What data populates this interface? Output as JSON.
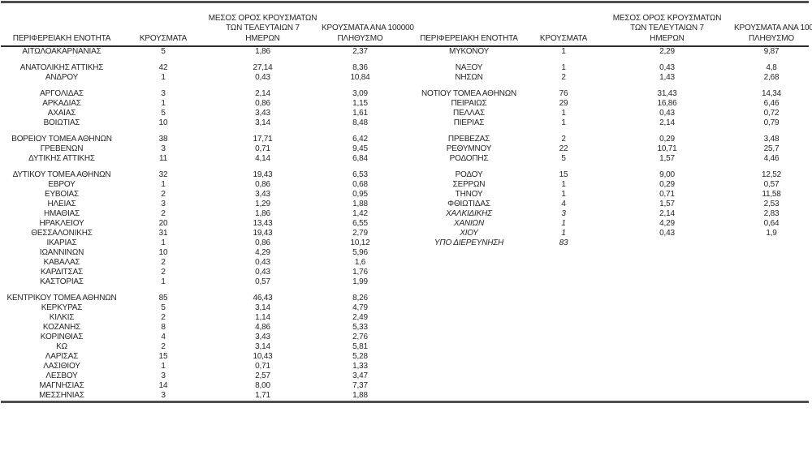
{
  "colors": {
    "background": "#ffffff",
    "text": "#262626",
    "thick_border": "#4f4f4f",
    "header_underline": "#2e2e2e"
  },
  "table": {
    "headers": {
      "region": "ΠΕΡΙΦΕΡΕΙΑΚΗ ΕΝΟΤΗΤΑ",
      "cases": "ΚΡΟΥΣΜΑΤΑ",
      "avg7": [
        "ΜΕΣΟΣ ΟΡΟΣ ΚΡΟΥΣΜΑΤΩΝ",
        "ΤΩΝ ΤΕΛΕΥΤΑΙΩΝ 7",
        "ΗΜΕΡΩΝ"
      ],
      "per100k": [
        "ΚΡΟΥΣΜΑΤΑ ΑΝΑ 100000",
        "ΠΛΗΘΥΣΜΟ"
      ]
    },
    "rows": [
      {
        "left": {
          "region": "ΑΙΤΩΛΟΑΚΑΡΝΑΝΙΑΣ",
          "cases": "5",
          "avg7": "1,86",
          "per100k": "2,37"
        },
        "right": {
          "region": "ΜΥΚΟΝΟΥ",
          "cases": "1",
          "avg7": "2,29",
          "per100k": "9,87"
        }
      },
      {
        "spacer": true
      },
      {
        "left": {
          "region": "ΑΝΑΤΟΛΙΚΗΣ ΑΤΤΙΚΗΣ",
          "cases": "42",
          "avg7": "27,14",
          "per100k": "8,36"
        },
        "right": {
          "region": "ΝΑΞΟΥ",
          "cases": "1",
          "avg7": "0,43",
          "per100k": "4,8"
        }
      },
      {
        "left": {
          "region": "ΑΝΔΡΟΥ",
          "cases": "1",
          "avg7": "0,43",
          "per100k": "10,84"
        },
        "right": {
          "region": "ΝΗΣΩΝ",
          "cases": "2",
          "avg7": "1,43",
          "per100k": "2,68"
        }
      },
      {
        "spacer": true
      },
      {
        "left": {
          "region": "ΑΡΓΟΛΙΔΑΣ",
          "cases": "3",
          "avg7": "2,14",
          "per100k": "3,09"
        },
        "right": {
          "region": "ΝΟΤΙΟΥ ΤΟΜΕΑ ΑΘΗΝΩΝ",
          "cases": "76",
          "avg7": "31,43",
          "per100k": "14,34"
        }
      },
      {
        "left": {
          "region": "ΑΡΚΑΔΙΑΣ",
          "cases": "1",
          "avg7": "0,86",
          "per100k": "1,15"
        },
        "right": {
          "region": "ΠΕΙΡΑΙΩΣ",
          "cases": "29",
          "avg7": "16,86",
          "per100k": "6,46"
        }
      },
      {
        "left": {
          "region": "ΑΧΑΪΑΣ",
          "cases": "5",
          "avg7": "3,43",
          "per100k": "1,61"
        },
        "right": {
          "region": "ΠΕΛΛΑΣ",
          "cases": "1",
          "avg7": "0,43",
          "per100k": "0,72"
        }
      },
      {
        "left": {
          "region": "ΒΟΙΩΤΙΑΣ",
          "cases": "10",
          "avg7": "3,14",
          "per100k": "8,48"
        },
        "right": {
          "region": "ΠΙΕΡΙΑΣ",
          "cases": "1",
          "avg7": "2,14",
          "per100k": "0,79"
        }
      },
      {
        "spacer": true
      },
      {
        "left": {
          "region": "ΒΟΡΕΙΟΥ ΤΟΜΕΑ ΑΘΗΝΩΝ",
          "cases": "38",
          "avg7": "17,71",
          "per100k": "6,42"
        },
        "right": {
          "region": "ΠΡΕΒΕΖΑΣ",
          "cases": "2",
          "avg7": "0,29",
          "per100k": "3,48"
        }
      },
      {
        "left": {
          "region": "ΓΡΕΒΕΝΩΝ",
          "cases": "3",
          "avg7": "0,71",
          "per100k": "9,45"
        },
        "right": {
          "region": "ΡΕΘΥΜΝΟΥ",
          "cases": "22",
          "avg7": "10,71",
          "per100k": "25,7"
        }
      },
      {
        "left": {
          "region": "ΔΥΤΙΚΗΣ ΑΤΤΙΚΗΣ",
          "cases": "11",
          "avg7": "4,14",
          "per100k": "6,84"
        },
        "right": {
          "region": "ΡΟΔΟΠΗΣ",
          "cases": "5",
          "avg7": "1,57",
          "per100k": "4,46"
        }
      },
      {
        "spacer": true
      },
      {
        "left": {
          "region": "ΔΥΤΙΚΟΥ ΤΟΜΕΑ ΑΘΗΝΩΝ",
          "cases": "32",
          "avg7": "19,43",
          "per100k": "6,53"
        },
        "right": {
          "region": "ΡΟΔΟΥ",
          "cases": "15",
          "avg7": "9,00",
          "per100k": "12,52"
        }
      },
      {
        "left": {
          "region": "ΕΒΡΟΥ",
          "cases": "1",
          "avg7": "0,86",
          "per100k": "0,68"
        },
        "right": {
          "region": "ΣΕΡΡΩΝ",
          "cases": "1",
          "avg7": "0,29",
          "per100k": "0,57"
        }
      },
      {
        "left": {
          "region": "ΕΥΒΟΙΑΣ",
          "cases": "2",
          "avg7": "3,43",
          "per100k": "0,95"
        },
        "right": {
          "region": "ΤΗΝΟΥ",
          "cases": "1",
          "avg7": "0,71",
          "per100k": "11,58"
        }
      },
      {
        "left": {
          "region": "ΗΛΕΙΑΣ",
          "cases": "3",
          "avg7": "1,29",
          "per100k": "1,88"
        },
        "right": {
          "region": "ΦΘΙΩΤΙΔΑΣ",
          "cases": "4",
          "avg7": "1,57",
          "per100k": "2,53"
        }
      },
      {
        "left": {
          "region": "ΗΜΑΘΙΑΣ",
          "cases": "2",
          "avg7": "1,86",
          "per100k": "1,42"
        },
        "right": {
          "region": "ΧΑΛΚΙΔΙΚΗΣ",
          "cases": "3",
          "avg7": "2,14",
          "per100k": "2,83",
          "italic": true
        }
      },
      {
        "left": {
          "region": "ΗΡΑΚΛΕΙΟΥ",
          "cases": "20",
          "avg7": "13,43",
          "per100k": "6,55"
        },
        "right": {
          "region": "ΧΑΝΙΩΝ",
          "cases": "1",
          "avg7": "4,29",
          "per100k": "0,64",
          "italic": true
        }
      },
      {
        "left": {
          "region": "ΘΕΣΣΑΛΟΝΙΚΗΣ",
          "cases": "31",
          "avg7": "19,43",
          "per100k": "2,79"
        },
        "right": {
          "region": "ΧΙΟΥ",
          "cases": "1",
          "avg7": "0,43",
          "per100k": "1,9",
          "italic": true
        }
      },
      {
        "left": {
          "region": "ΙΚΑΡΙΑΣ",
          "cases": "1",
          "avg7": "0,86",
          "per100k": "10,12"
        },
        "right": {
          "region": "ΥΠΟ ΔΙΕΡΕΥΝΗΣΗ",
          "cases": "83",
          "avg7": "",
          "per100k": "",
          "italic": true,
          "align": "left"
        }
      },
      {
        "left": {
          "region": "ΙΩΑΝΝΙΝΩΝ",
          "cases": "10",
          "avg7": "4,29",
          "per100k": "5,96"
        },
        "right": null
      },
      {
        "left": {
          "region": "ΚΑΒΑΛΑΣ",
          "cases": "2",
          "avg7": "0,43",
          "per100k": "1,6"
        },
        "right": null
      },
      {
        "left": {
          "region": "ΚΑΡΔΙΤΣΑΣ",
          "cases": "2",
          "avg7": "0,43",
          "per100k": "1,76"
        },
        "right": null
      },
      {
        "left": {
          "region": "ΚΑΣΤΟΡΙΑΣ",
          "cases": "1",
          "avg7": "0,57",
          "per100k": "1,99"
        },
        "right": null
      },
      {
        "spacer": true
      },
      {
        "left": {
          "region": "ΚΕΝΤΡΙΚΟΥ ΤΟΜΕΑ ΑΘΗΝΩΝ",
          "cases": "85",
          "avg7": "46,43",
          "per100k": "8,26"
        },
        "right": null
      },
      {
        "left": {
          "region": "ΚΕΡΚΥΡΑΣ",
          "cases": "5",
          "avg7": "3,14",
          "per100k": "4,79"
        },
        "right": null
      },
      {
        "left": {
          "region": "ΚΙΛΚΙΣ",
          "cases": "2",
          "avg7": "1,14",
          "per100k": "2,49"
        },
        "right": null
      },
      {
        "left": {
          "region": "ΚΟΖΑΝΗΣ",
          "cases": "8",
          "avg7": "4,86",
          "per100k": "5,33"
        },
        "right": null
      },
      {
        "left": {
          "region": "ΚΟΡΙΝΘΙΑΣ",
          "cases": "4",
          "avg7": "3,43",
          "per100k": "2,76"
        },
        "right": null
      },
      {
        "left": {
          "region": "ΚΩ",
          "cases": "2",
          "avg7": "3,14",
          "per100k": "5,81"
        },
        "right": null
      },
      {
        "left": {
          "region": "ΛΑΡΙΣΑΣ",
          "cases": "15",
          "avg7": "10,43",
          "per100k": "5,28"
        },
        "right": null
      },
      {
        "left": {
          "region": "ΛΑΣΙΘΙΟΥ",
          "cases": "1",
          "avg7": "0,71",
          "per100k": "1,33"
        },
        "right": null
      },
      {
        "left": {
          "region": "ΛΕΣΒΟΥ",
          "cases": "3",
          "avg7": "2,57",
          "per100k": "3,47"
        },
        "right": null
      },
      {
        "left": {
          "region": "ΜΑΓΝΗΣΙΑΣ",
          "cases": "14",
          "avg7": "8,00",
          "per100k": "7,37"
        },
        "right": null
      },
      {
        "left": {
          "region": "ΜΕΣΣΗΝΙΑΣ",
          "cases": "3",
          "avg7": "1,71",
          "per100k": "1,88"
        },
        "right": null
      }
    ]
  }
}
